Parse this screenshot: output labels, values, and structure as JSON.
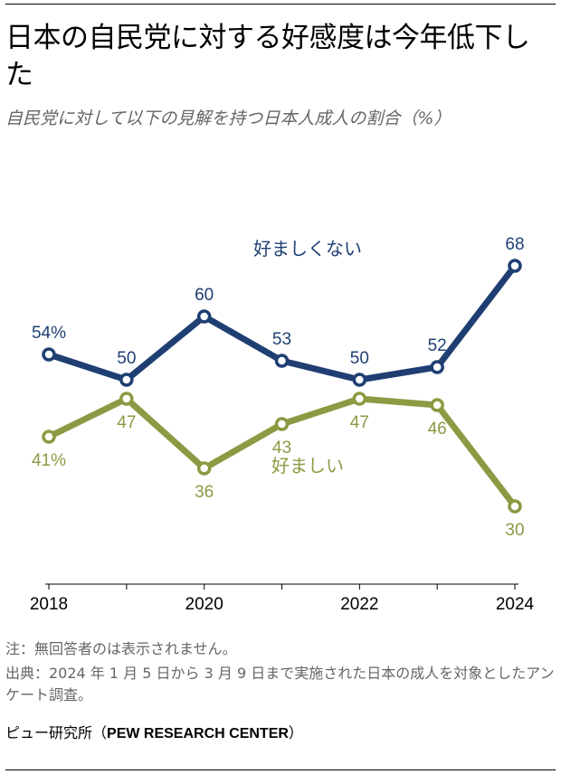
{
  "header": {
    "title": "日本の自民党に対する好感度は今年低下した",
    "subtitle": "自民党に対して以下の見解を持つ日本人成人の割合（%）"
  },
  "chart_data": {
    "type": "line",
    "x": [
      2018,
      2019,
      2020,
      2021,
      2022,
      2023,
      2024
    ],
    "xticks": [
      "2018",
      "2020",
      "2022",
      "2024"
    ],
    "ylim": [
      20,
      80
    ],
    "grid": false,
    "series": [
      {
        "name": "好ましくない",
        "color": "#1f3f73",
        "values": [
          54,
          50,
          60,
          53,
          50,
          52,
          68
        ],
        "labels": [
          "54%",
          "50",
          "60",
          "53",
          "50",
          "52",
          "68"
        ]
      },
      {
        "name": "好ましい",
        "color": "#8c9a43",
        "values": [
          41,
          47,
          36,
          43,
          47,
          46,
          30
        ],
        "labels": [
          "41%",
          "47",
          "36",
          "43",
          "47",
          "46",
          "30"
        ]
      }
    ]
  },
  "footer": {
    "note": "注：無回答者のは表示されません。",
    "source": "出典：2024 年 1 月 5 日から 3 月 9 日まで実施された日本の成人を対象としたアンケート調査。",
    "credit_prefix": "ピュー研究所（",
    "credit_org": "PEW RESEARCH CENTER",
    "credit_suffix": "）"
  }
}
